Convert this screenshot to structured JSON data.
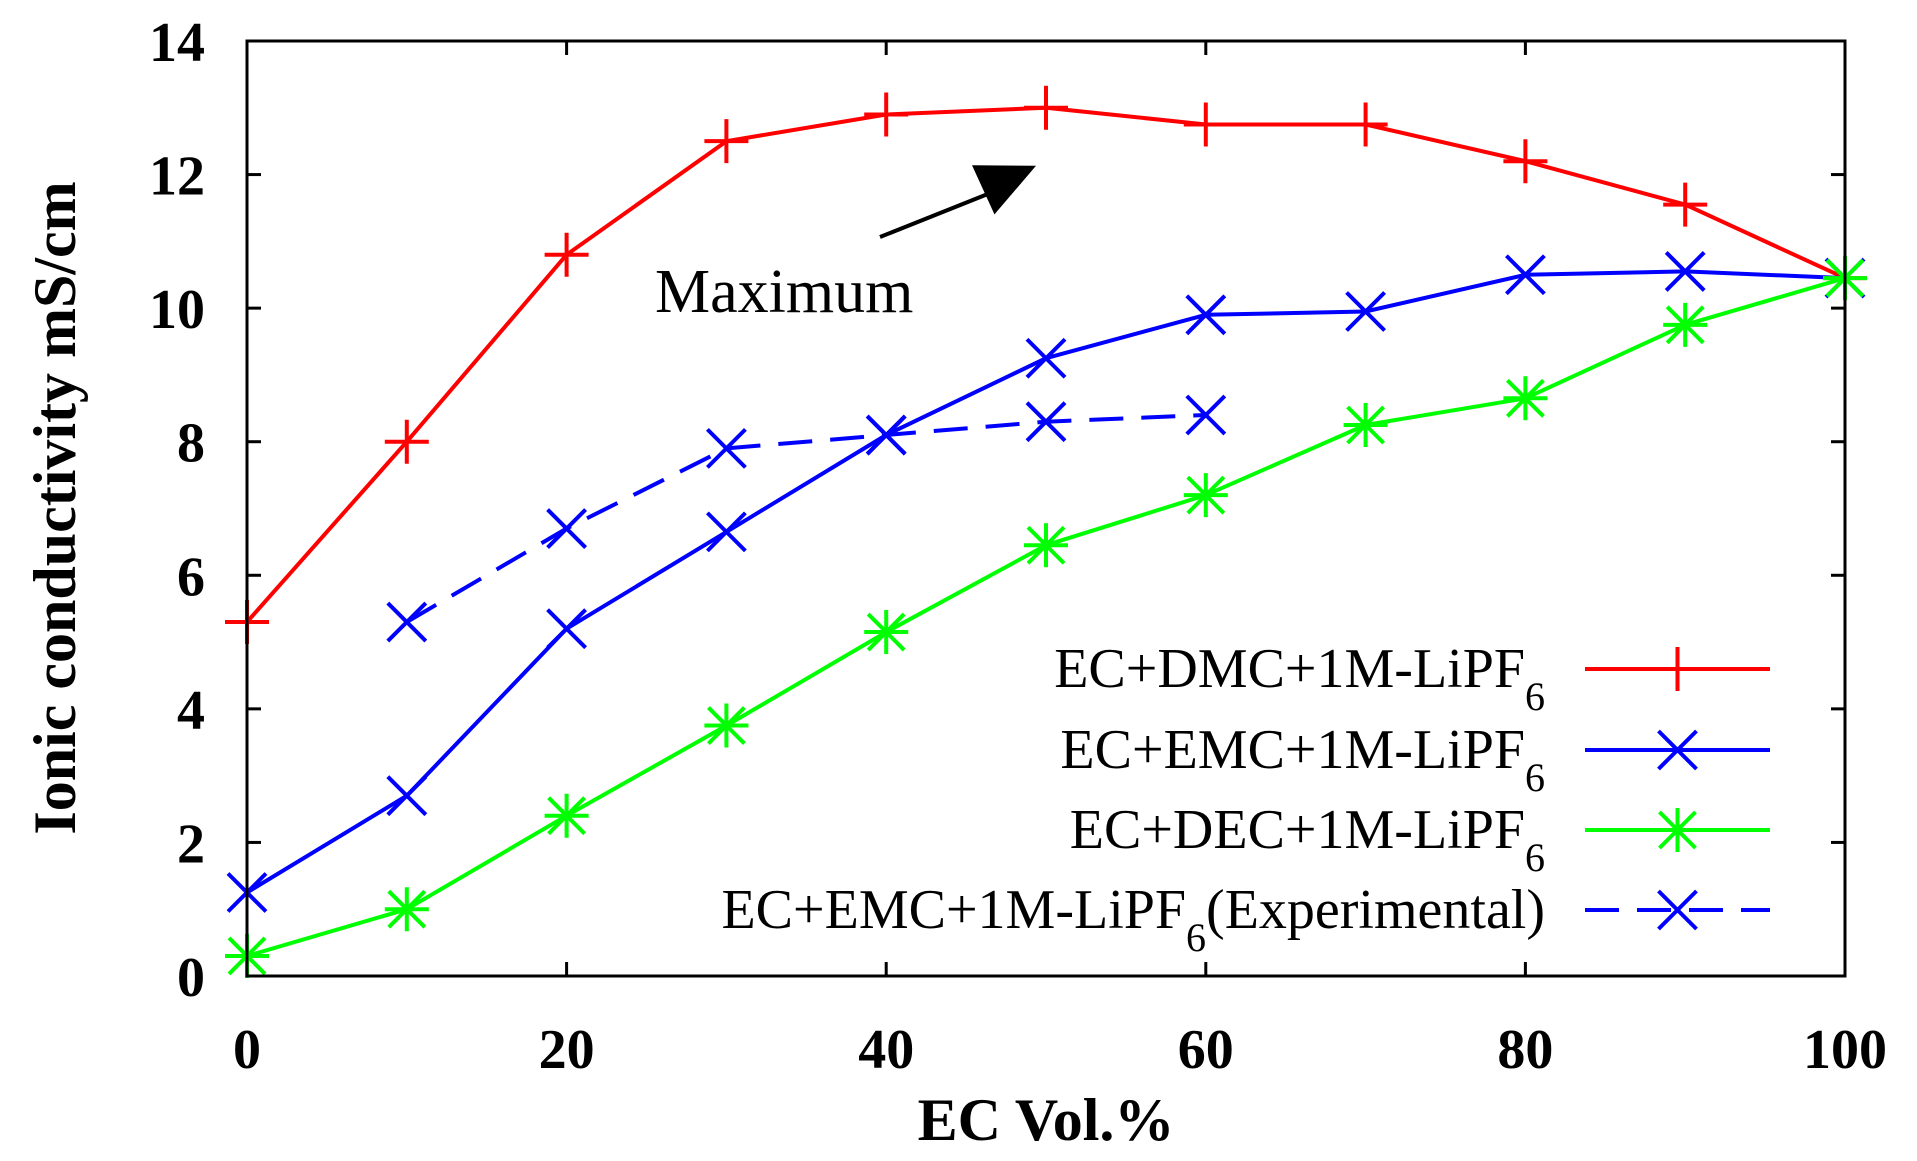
{
  "chart_data": {
    "type": "line",
    "title": "",
    "xlabel": "EC  Vol.%",
    "ylabel": "Ionic conductivity  mS/cm",
    "xlim": [
      0,
      100
    ],
    "ylim": [
      0,
      14
    ],
    "xticks": [
      0,
      20,
      40,
      60,
      80,
      100
    ],
    "yticks": [
      0,
      2,
      4,
      6,
      8,
      10,
      12,
      14
    ],
    "grid": false,
    "legend_position": "bottom-right",
    "series": [
      {
        "name": "EC+DMC+1M-LiPF",
        "subscript": "6",
        "suffix": "",
        "color": "#ff0000",
        "marker": "plus",
        "dash": "solid",
        "x": [
          0,
          10,
          20,
          30,
          40,
          50,
          60,
          70,
          80,
          90,
          100
        ],
        "values": [
          5.3,
          8.0,
          10.8,
          12.5,
          12.9,
          13.0,
          12.75,
          12.75,
          12.2,
          11.55,
          10.45
        ]
      },
      {
        "name": "EC+EMC+1M-LiPF",
        "subscript": "6",
        "suffix": "",
        "color": "#0000ff",
        "marker": "x",
        "dash": "solid",
        "x": [
          0,
          10,
          20,
          30,
          40,
          50,
          60,
          70,
          80,
          90,
          100
        ],
        "values": [
          1.25,
          2.7,
          5.2,
          6.65,
          8.1,
          9.25,
          9.9,
          9.95,
          10.5,
          10.55,
          10.45
        ]
      },
      {
        "name": "EC+DEC+1M-LiPF",
        "subscript": "6",
        "suffix": "",
        "color": "#00ff00",
        "marker": "star",
        "dash": "solid",
        "x": [
          0,
          10,
          20,
          30,
          40,
          50,
          60,
          70,
          80,
          90,
          100
        ],
        "values": [
          0.3,
          1.0,
          2.4,
          3.75,
          5.15,
          6.45,
          7.2,
          8.25,
          8.65,
          9.75,
          10.45
        ]
      },
      {
        "name": "EC+EMC+1M-LiPF",
        "subscript": "6",
        "suffix": "(Experimental)",
        "color": "#0000ff",
        "marker": "x",
        "dash": "dashed",
        "x": [
          10,
          20,
          30,
          40,
          50,
          60
        ],
        "values": [
          5.3,
          6.7,
          7.9,
          8.1,
          8.3,
          8.4
        ]
      }
    ],
    "annotations": [
      {
        "text": "Maximum",
        "points_to": {
          "x": 50,
          "y": 13.0
        }
      }
    ]
  }
}
